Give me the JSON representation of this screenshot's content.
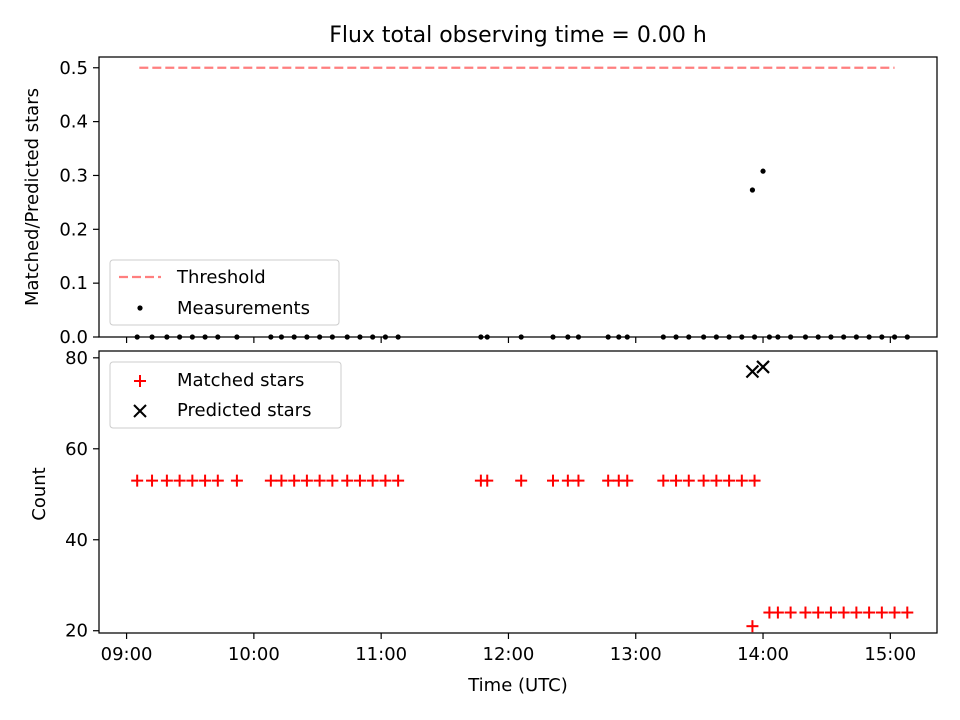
{
  "figure": {
    "title": "Flux total observing time = 0.00 h",
    "xlabel": "Time (UTC)"
  },
  "chart_data": [
    {
      "type": "scatter",
      "ylabel": "Matched/Predicted stars",
      "xlim": [
        "08:47",
        "15:22"
      ],
      "ylim": [
        0,
        0.52
      ],
      "yticks": [
        0.0,
        0.1,
        0.2,
        0.3,
        0.4,
        0.5
      ],
      "xticks": [
        "09:00",
        "10:00",
        "11:00",
        "12:00",
        "13:00",
        "14:00",
        "15:00"
      ],
      "grid": false,
      "legend_position": "lower-left",
      "threshold": {
        "name": "Threshold",
        "value": 0.5,
        "x_start": "09:06",
        "x_end": "15:02",
        "color": "#ff7f7f"
      },
      "measurements": {
        "name": "Measurements",
        "color": "#000000",
        "x": [
          "09:05",
          "09:12",
          "09:19",
          "09:25",
          "09:31",
          "09:37",
          "09:43",
          "09:52",
          "10:08",
          "10:13",
          "10:19",
          "10:25",
          "10:31",
          "10:37",
          "10:44",
          "10:50",
          "10:56",
          "11:02",
          "11:08",
          "11:47",
          "11:50",
          "12:06",
          "12:21",
          "12:28",
          "12:33",
          "12:47",
          "12:52",
          "12:56",
          "13:13",
          "13:19",
          "13:25",
          "13:32",
          "13:38",
          "13:44",
          "13:50",
          "13:56",
          "14:03",
          "14:07",
          "14:13",
          "14:20",
          "14:26",
          "14:32",
          "14:38",
          "14:44",
          "14:50",
          "14:56",
          "15:02",
          "15:08",
          "13:55",
          "14:00"
        ],
        "y": [
          0,
          0,
          0,
          0,
          0,
          0,
          0,
          0,
          0,
          0,
          0,
          0,
          0,
          0,
          0,
          0,
          0,
          0,
          0,
          0,
          0,
          0,
          0,
          0,
          0,
          0,
          0,
          0,
          0,
          0,
          0,
          0,
          0,
          0,
          0,
          0,
          0,
          0,
          0,
          0,
          0,
          0,
          0,
          0,
          0,
          0,
          0,
          0,
          0.273,
          0.308
        ]
      }
    },
    {
      "type": "scatter",
      "ylabel": "Count",
      "xlim": [
        "08:47",
        "15:22"
      ],
      "ylim": [
        19.5,
        81.5
      ],
      "yticks": [
        20,
        40,
        60,
        80
      ],
      "xticks": [
        "09:00",
        "10:00",
        "11:00",
        "12:00",
        "13:00",
        "14:00",
        "15:00"
      ],
      "grid": false,
      "legend_position": "upper-left",
      "series": [
        {
          "name": "Matched stars",
          "marker": "plus",
          "color": "#ff0000",
          "x": [
            "09:05",
            "09:12",
            "09:19",
            "09:25",
            "09:31",
            "09:37",
            "09:43",
            "09:52",
            "10:08",
            "10:13",
            "10:19",
            "10:25",
            "10:31",
            "10:37",
            "10:44",
            "10:50",
            "10:56",
            "11:02",
            "11:08",
            "11:47",
            "11:50",
            "12:06",
            "12:21",
            "12:28",
            "12:33",
            "12:47",
            "12:52",
            "12:56",
            "13:13",
            "13:19",
            "13:25",
            "13:32",
            "13:38",
            "13:44",
            "13:50",
            "13:56",
            "14:03",
            "14:07",
            "14:13",
            "14:20",
            "14:26",
            "14:32",
            "14:38",
            "14:44",
            "14:50",
            "14:56",
            "15:02",
            "15:08",
            "13:55"
          ],
          "y": [
            53,
            53,
            53,
            53,
            53,
            53,
            53,
            53,
            53,
            53,
            53,
            53,
            53,
            53,
            53,
            53,
            53,
            53,
            53,
            53,
            53,
            53,
            53,
            53,
            53,
            53,
            53,
            53,
            53,
            53,
            53,
            53,
            53,
            53,
            53,
            53,
            24,
            24,
            24,
            24,
            24,
            24,
            24,
            24,
            24,
            24,
            24,
            24,
            21
          ]
        },
        {
          "name": "Predicted stars",
          "marker": "x",
          "color": "#000000",
          "x": [
            "13:55",
            "14:00"
          ],
          "y": [
            77,
            78
          ]
        }
      ]
    }
  ]
}
